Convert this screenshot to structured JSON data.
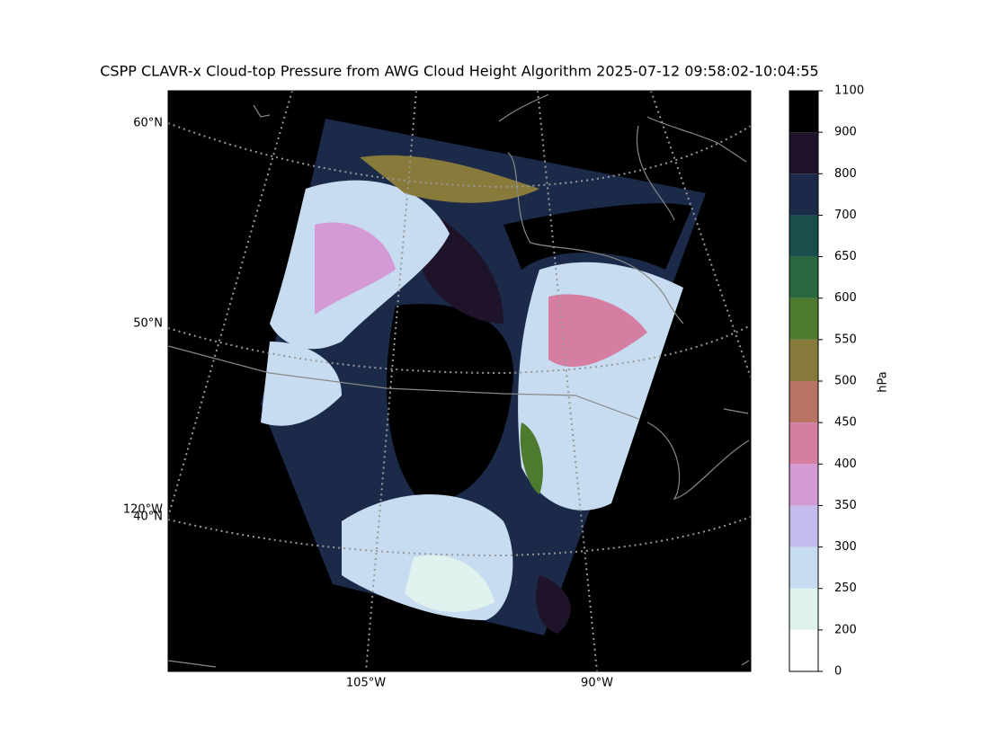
{
  "title": "CSPP CLAVR-x Cloud-top Pressure from AWG Cloud Height Algorithm 2025-07-12 09:58:02-10:04:55",
  "map": {
    "lat_labels": [
      "60°N",
      "50°N",
      "40°N"
    ],
    "lon_labels": [
      "120°W",
      "105°W",
      "90°W"
    ]
  },
  "colorbar": {
    "label": "hPa",
    "norm": "boundary",
    "ticks": [
      0,
      200,
      250,
      300,
      350,
      400,
      450,
      500,
      550,
      600,
      650,
      700,
      800,
      900,
      1100
    ],
    "colors": [
      "#ffffff",
      "#dff2ee",
      "#c7dcf0",
      "#c4bcee",
      "#d49ad6",
      "#d57ea2",
      "#b87462",
      "#877a3a",
      "#4d7a2f",
      "#27683f",
      "#1a4e4c",
      "#1c2a4a",
      "#1e1328",
      "#000000"
    ]
  }
}
